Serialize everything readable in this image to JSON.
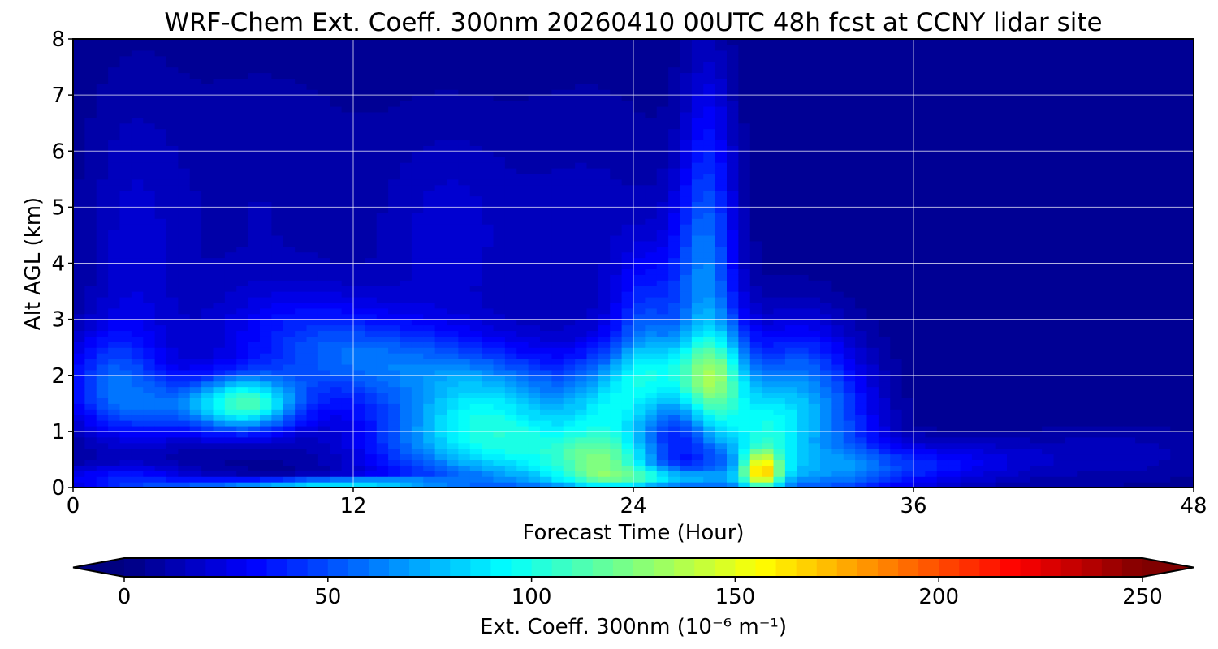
{
  "chart_data": {
    "type": "heatmap",
    "title": "WRF-Chem Ext. Coeff. 300nm  20260410 00UTC 48h fcst at CCNY lidar site",
    "xlabel": "Forecast Time (Hour)",
    "ylabel": "Alt AGL (km)",
    "xlim": [
      0,
      48
    ],
    "ylim": [
      0,
      8
    ],
    "xticks": [
      0,
      12,
      24,
      36,
      48
    ],
    "yticks": [
      0,
      1,
      2,
      3,
      4,
      5,
      6,
      7,
      8
    ],
    "grid": true,
    "background_value": 5,
    "features": [
      {
        "x": 7.5,
        "y": 1.5,
        "sx": 1.6,
        "sy": 0.35,
        "value": 85
      },
      {
        "x": 4.5,
        "y": 1.45,
        "sx": 2.5,
        "sy": 0.4,
        "value": 35
      },
      {
        "x": 1.5,
        "y": 2.0,
        "sx": 1.5,
        "sy": 0.6,
        "value": 35
      },
      {
        "x": 2.5,
        "y": 3.5,
        "sx": 1.5,
        "sy": 2.5,
        "value": 15
      },
      {
        "x": 12.0,
        "y": 0.08,
        "sx": 3.0,
        "sy": 0.08,
        "value": 60
      },
      {
        "x": 7.0,
        "y": 0.05,
        "sx": 4.0,
        "sy": 0.07,
        "value": 40
      },
      {
        "x": 2.0,
        "y": 0.2,
        "sx": 3.0,
        "sy": 0.15,
        "value": 25
      },
      {
        "x": 16.0,
        "y": 0.8,
        "sx": 3.0,
        "sy": 0.6,
        "value": 50
      },
      {
        "x": 13.0,
        "y": 2.2,
        "sx": 3.0,
        "sy": 0.5,
        "value": 40
      },
      {
        "x": 18.0,
        "y": 1.6,
        "sx": 2.5,
        "sy": 0.6,
        "value": 55
      },
      {
        "x": 20.0,
        "y": 0.6,
        "sx": 2.5,
        "sy": 0.5,
        "value": 50
      },
      {
        "x": 23.0,
        "y": 1.3,
        "sx": 1.5,
        "sy": 0.7,
        "value": 60
      },
      {
        "x": 23.0,
        "y": 0.45,
        "sx": 1.8,
        "sy": 0.3,
        "value": 55
      },
      {
        "x": 26.0,
        "y": 2.0,
        "sx": 2.0,
        "sy": 0.5,
        "value": 55
      },
      {
        "x": 27.5,
        "y": 1.8,
        "sx": 1.0,
        "sy": 0.9,
        "value": 70
      },
      {
        "x": 27.0,
        "y": 3.8,
        "sx": 1.0,
        "sy": 1.2,
        "value": 45
      },
      {
        "x": 27.2,
        "y": 6.0,
        "sx": 0.8,
        "sy": 1.5,
        "value": 25
      },
      {
        "x": 29.5,
        "y": 0.3,
        "sx": 0.6,
        "sy": 0.25,
        "value": 95
      },
      {
        "x": 29.5,
        "y": 0.9,
        "sx": 1.2,
        "sy": 0.6,
        "value": 60
      },
      {
        "x": 31.0,
        "y": 1.6,
        "sx": 1.5,
        "sy": 1.0,
        "value": 50
      },
      {
        "x": 24.5,
        "y": 2.8,
        "sx": 1.0,
        "sy": 1.0,
        "value": 35
      },
      {
        "x": 25.0,
        "y": 0.15,
        "sx": 3.0,
        "sy": 0.15,
        "value": 60
      },
      {
        "x": 33.0,
        "y": 1.0,
        "sx": 1.5,
        "sy": 1.0,
        "value": 30
      },
      {
        "x": 34.0,
        "y": 0.3,
        "sx": 3.0,
        "sy": 0.3,
        "value": 30
      },
      {
        "x": 38.0,
        "y": 0.5,
        "sx": 3.0,
        "sy": 0.3,
        "value": 18
      },
      {
        "x": 45.0,
        "y": 0.6,
        "sx": 3.0,
        "sy": 0.4,
        "value": 12
      },
      {
        "x": 16.0,
        "y": 4.5,
        "sx": 2.0,
        "sy": 1.5,
        "value": 15
      },
      {
        "x": 8.0,
        "y": 5.0,
        "sx": 4.0,
        "sy": 2.0,
        "value": 10
      },
      {
        "x": 22.0,
        "y": 4.5,
        "sx": 3.0,
        "sy": 2.0,
        "value": 12
      },
      {
        "x": 10.0,
        "y": 2.8,
        "sx": 3.0,
        "sy": 0.6,
        "value": 25
      }
    ],
    "colorbar": {
      "label": "Ext. Coeff. 300nm  (10⁻⁶ m⁻¹)",
      "min": 0,
      "max": 250,
      "ticks": [
        0,
        50,
        100,
        150,
        200,
        250
      ],
      "extend": "both",
      "colormap": "jet",
      "levels": 50
    }
  }
}
